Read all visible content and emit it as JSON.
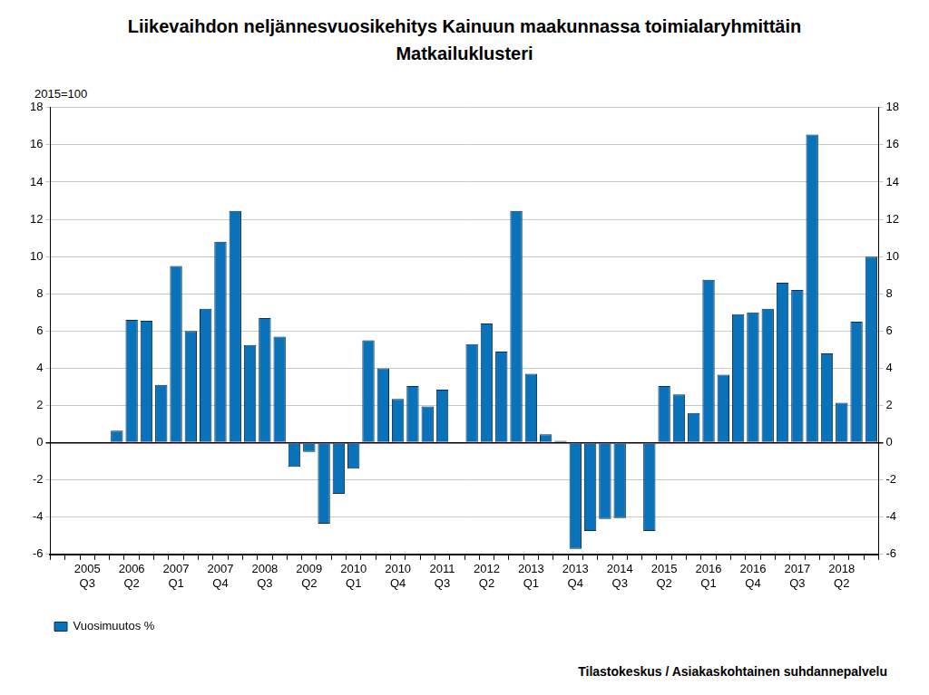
{
  "chart_data": {
    "type": "bar",
    "title": "Liikevaihdon neljännesvuosikehitys Kainuun maakunnassa toimialaryhmittäin",
    "subtitle": "Matkailuklusteri",
    "y_label": "2015=100",
    "source": "Tilastokeskus / Asiakaskohtainen suhdannepalvelu",
    "categories": [
      null,
      null,
      "2005 Q3",
      null,
      null,
      "2006 Q2",
      null,
      null,
      "2007 Q1",
      null,
      null,
      "2007 Q4",
      null,
      null,
      "2008 Q3",
      null,
      null,
      "2009 Q2",
      null,
      null,
      "2010 Q1",
      null,
      null,
      "2010 Q4",
      null,
      null,
      "2011 Q3",
      null,
      null,
      "2012 Q2",
      null,
      null,
      "2013 Q1",
      null,
      null,
      "2013 Q4",
      null,
      null,
      "2014 Q3",
      null,
      null,
      "2015 Q2",
      null,
      null,
      "2016 Q1",
      null,
      null,
      "2016 Q4",
      null,
      null,
      "2017 Q3",
      null,
      null,
      "2018 Q2",
      null,
      null
    ],
    "series": [
      {
        "name": "Vuosimuutos %",
        "color": "#0a72b8",
        "values": [
          null,
          null,
          null,
          null,
          0.65,
          6.6,
          6.55,
          3.1,
          9.5,
          6.0,
          7.2,
          10.8,
          12.45,
          5.25,
          6.7,
          5.7,
          -1.3,
          -0.5,
          -4.35,
          -2.75,
          -1.4,
          5.5,
          4.0,
          2.35,
          3.05,
          1.95,
          2.85,
          -0.05,
          5.3,
          6.4,
          4.9,
          12.45,
          3.7,
          0.45,
          0.1,
          -5.7,
          -4.75,
          -4.1,
          -4.05,
          0,
          -4.75,
          3.05,
          2.6,
          1.6,
          8.75,
          3.65,
          6.9,
          7.0,
          7.2,
          8.6,
          8.2,
          16.55,
          4.8,
          2.15,
          6.5,
          10.0
        ]
      }
    ],
    "ylim": [
      -6,
      18
    ],
    "yticks": [
      -6,
      -4,
      -2,
      0,
      2,
      4,
      6,
      8,
      10,
      12,
      14,
      16,
      18
    ],
    "y2lim": [
      -6,
      18
    ],
    "y2ticks": [
      -6,
      -4,
      -2,
      0,
      2,
      4,
      6,
      8,
      10,
      12,
      14,
      16,
      18
    ],
    "grid": true,
    "legend": "bottom-left"
  }
}
